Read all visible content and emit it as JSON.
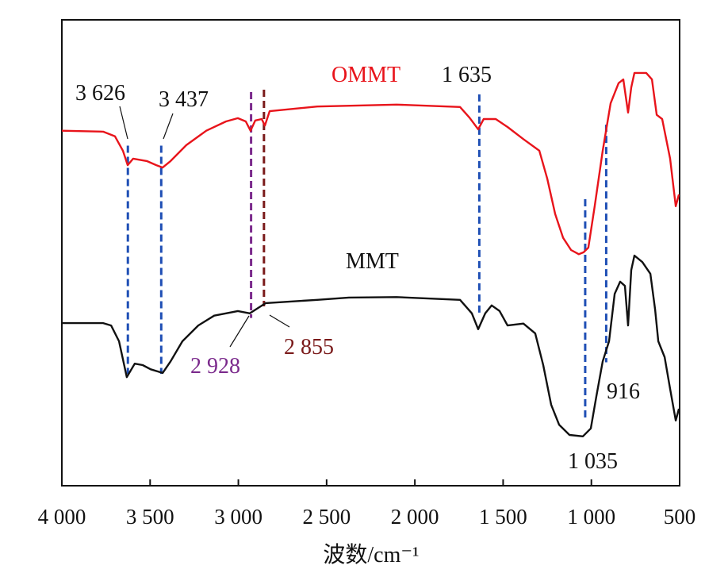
{
  "chart_data": {
    "type": "line",
    "title": "",
    "xlabel": "波数/cm⁻¹",
    "ylabel": "",
    "xlim": [
      4000,
      500
    ],
    "ylim": [
      0,
      100
    ],
    "x_reversed": true,
    "grid": false,
    "xticks": [
      4000,
      3500,
      3000,
      2500,
      2000,
      1500,
      1000,
      500
    ],
    "xtick_labels": [
      "4 000",
      "3 500",
      "3 000",
      "2 500",
      "2 000",
      "1 500",
      "1 000",
      "500"
    ],
    "series": [
      {
        "name": "OMMT",
        "color": "#e8141b",
        "x": [
          4000,
          3766,
          3699,
          3654,
          3627,
          3596,
          3519,
          3465,
          3429,
          3384,
          3295,
          3182,
          3070,
          3003,
          2958,
          2931,
          2904,
          2868,
          2850,
          2823,
          2553,
          2104,
          1744,
          1690,
          1641,
          1610,
          1542,
          1475,
          1385,
          1295,
          1250,
          1205,
          1160,
          1115,
          1071,
          1044,
          1017,
          981,
          936,
          891,
          846,
          819,
          792,
          774,
          756,
          689,
          657,
          630,
          599,
          554,
          522,
          504
        ],
        "y": [
          76.2,
          76.0,
          75.0,
          71.9,
          68.8,
          70.2,
          69.7,
          68.8,
          68.3,
          69.7,
          73.1,
          76.2,
          78.2,
          78.9,
          78.2,
          76.2,
          78.4,
          78.7,
          77.3,
          80.4,
          81.4,
          81.8,
          81.3,
          79.0,
          76.5,
          78.7,
          78.7,
          77.0,
          74.4,
          71.9,
          65.9,
          58.3,
          53.2,
          50.6,
          49.7,
          50.1,
          51.1,
          60.0,
          71.9,
          82.1,
          86.4,
          87.2,
          80.1,
          85.5,
          88.6,
          88.6,
          87.2,
          79.6,
          78.7,
          70.2,
          60.0,
          62.5
        ]
      },
      {
        "name": "MMT",
        "color": "#111111",
        "x": [
          4000,
          3766,
          3721,
          3676,
          3632,
          3587,
          3542,
          3497,
          3429,
          3384,
          3317,
          3227,
          3137,
          3003,
          2935,
          2845,
          2553,
          2374,
          2104,
          1744,
          1677,
          1641,
          1601,
          1565,
          1520,
          1475,
          1385,
          1318,
          1273,
          1228,
          1183,
          1124,
          1048,
          1003,
          972,
          936,
          900,
          868,
          837,
          810,
          792,
          774,
          756,
          711,
          666,
          639,
          621,
          585,
          554,
          522,
          504
        ],
        "y": [
          34.9,
          34.9,
          34.4,
          31.0,
          23.3,
          26.2,
          25.9,
          25.0,
          24.2,
          26.7,
          31.0,
          34.4,
          36.5,
          37.5,
          37.0,
          39.2,
          39.9,
          40.4,
          40.5,
          39.9,
          37.0,
          33.6,
          37.0,
          38.7,
          37.5,
          34.4,
          34.8,
          32.7,
          25.9,
          17.4,
          13.1,
          10.9,
          10.6,
          12.3,
          19.1,
          26.7,
          31.0,
          41.2,
          43.8,
          42.9,
          34.4,
          46.3,
          49.4,
          48.0,
          45.5,
          37.8,
          31.0,
          27.6,
          20.8,
          14.0,
          16.5
        ]
      }
    ],
    "series_labels": [
      {
        "text": "OMMT",
        "color": "#e8141b"
      },
      {
        "text": "MMT",
        "color": "#111111"
      }
    ],
    "reference_lines": [
      {
        "x": 3626,
        "y_from": 24,
        "y_to": 73,
        "color": "#1f4fb5",
        "label": "3 626",
        "label_color": "#111111"
      },
      {
        "x": 3437,
        "y_from": 24,
        "y_to": 73,
        "color": "#1f4fb5",
        "label": "3 437",
        "label_color": "#111111"
      },
      {
        "x": 2928,
        "y_from": 36,
        "y_to": 84.5,
        "color": "#7b2a8c",
        "label": "2 928",
        "label_color": "#7b2a8c"
      },
      {
        "x": 2855,
        "y_from": 38.5,
        "y_to": 85,
        "color": "#7a1a1a",
        "label": "2 855",
        "label_color": "#7a1a1a"
      },
      {
        "x": 1635,
        "y_from": 37,
        "y_to": 84,
        "color": "#1f4fb5",
        "label": "1 635",
        "label_color": "#111111"
      },
      {
        "x": 1035,
        "y_from": 14,
        "y_to": 61.5,
        "color": "#1f4fb5",
        "label": "1 035",
        "label_color": "#111111"
      },
      {
        "x": 916,
        "y_from": 26.5,
        "y_to": 77.5,
        "color": "#1f4fb5",
        "label": "916",
        "label_color": "#111111"
      }
    ]
  }
}
